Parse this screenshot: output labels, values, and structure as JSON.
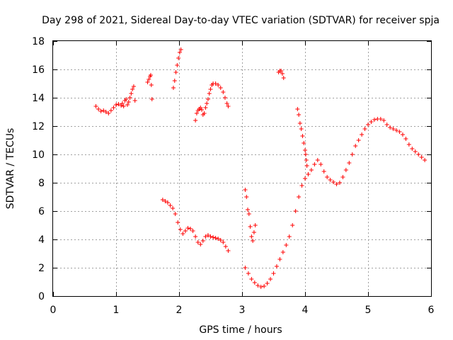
{
  "chart_data": {
    "type": "scatter",
    "title": "Day 298 of 2021, Sidereal Day-to-day VTEC variation (SDTVAR) for receiver spja",
    "xlabel": "GPS time / hours",
    "ylabel": "SDTVAR / TECUs",
    "xlim": [
      0,
      6
    ],
    "ylim": [
      0,
      18
    ],
    "xticks": [
      0,
      1,
      2,
      3,
      4,
      5,
      6
    ],
    "xtick_labels": [
      "0",
      "1",
      "2",
      "3",
      "4",
      "5",
      "6"
    ],
    "yticks": [
      0,
      2,
      4,
      6,
      8,
      10,
      12,
      14,
      16,
      18
    ],
    "ytick_labels": [
      "0",
      "2",
      "4",
      "6",
      "8",
      "10",
      "12",
      "14",
      "16",
      "18"
    ],
    "grid": true,
    "marker": "+",
    "color": "#ff0000",
    "series": [
      {
        "name": "SDTVAR",
        "segments": [
          [
            [
              0.68,
              13.4
            ],
            [
              0.72,
              13.2
            ],
            [
              0.76,
              13.05
            ],
            [
              0.8,
              13.1
            ],
            [
              0.84,
              13.0
            ],
            [
              0.88,
              12.9
            ],
            [
              0.92,
              13.1
            ],
            [
              0.96,
              13.3
            ],
            [
              1.0,
              13.5
            ],
            [
              1.04,
              13.55
            ],
            [
              1.08,
              13.45
            ],
            [
              1.1,
              13.6
            ],
            [
              1.12,
              13.4
            ],
            [
              1.14,
              13.8
            ],
            [
              1.16,
              13.9
            ],
            [
              1.18,
              13.5
            ],
            [
              1.2,
              13.7
            ],
            [
              1.22,
              14.0
            ],
            [
              1.24,
              14.3
            ],
            [
              1.26,
              14.6
            ],
            [
              1.28,
              14.8
            ],
            [
              1.3,
              13.8
            ]
          ],
          [
            [
              1.5,
              15.1
            ],
            [
              1.52,
              15.3
            ],
            [
              1.54,
              15.5
            ],
            [
              1.55,
              15.6
            ],
            [
              1.56,
              14.9
            ],
            [
              1.57,
              13.9
            ]
          ],
          [
            [
              1.91,
              14.7
            ],
            [
              1.93,
              15.2
            ],
            [
              1.95,
              15.8
            ],
            [
              1.97,
              16.3
            ],
            [
              1.99,
              16.8
            ],
            [
              2.01,
              17.2
            ],
            [
              2.03,
              17.4
            ]
          ],
          [
            [
              1.74,
              6.8
            ],
            [
              1.78,
              6.7
            ],
            [
              1.82,
              6.6
            ],
            [
              1.86,
              6.4
            ],
            [
              1.9,
              6.2
            ],
            [
              1.94,
              5.8
            ],
            [
              1.98,
              5.2
            ],
            [
              2.02,
              4.7
            ],
            [
              2.06,
              4.4
            ],
            [
              2.1,
              4.6
            ],
            [
              2.14,
              4.8
            ],
            [
              2.18,
              4.75
            ],
            [
              2.22,
              4.6
            ],
            [
              2.26,
              4.2
            ],
            [
              2.3,
              3.8
            ],
            [
              2.34,
              3.65
            ],
            [
              2.38,
              3.9
            ],
            [
              2.42,
              4.2
            ],
            [
              2.46,
              4.3
            ],
            [
              2.5,
              4.2
            ],
            [
              2.54,
              4.15
            ],
            [
              2.58,
              4.1
            ],
            [
              2.62,
              4.05
            ],
            [
              2.66,
              3.95
            ],
            [
              2.7,
              3.8
            ],
            [
              2.74,
              3.5
            ],
            [
              2.78,
              3.2
            ]
          ],
          [
            [
              2.26,
              12.4
            ],
            [
              2.28,
              12.9
            ],
            [
              2.3,
              13.1
            ],
            [
              2.32,
              13.2
            ],
            [
              2.34,
              13.3
            ],
            [
              2.36,
              13.15
            ],
            [
              2.38,
              12.8
            ],
            [
              2.4,
              12.9
            ],
            [
              2.42,
              13.3
            ],
            [
              2.44,
              13.6
            ],
            [
              2.46,
              13.9
            ],
            [
              2.48,
              14.3
            ],
            [
              2.5,
              14.6
            ],
            [
              2.52,
              14.9
            ],
            [
              2.54,
              15.0
            ],
            [
              2.58,
              15.0
            ],
            [
              2.62,
              14.9
            ],
            [
              2.66,
              14.7
            ],
            [
              2.7,
              14.4
            ],
            [
              2.73,
              14.0
            ],
            [
              2.76,
              13.6
            ],
            [
              2.78,
              13.4
            ]
          ],
          [
            [
              3.05,
              7.5
            ],
            [
              3.07,
              7.0
            ],
            [
              3.09,
              6.1
            ],
            [
              3.11,
              5.8
            ],
            [
              3.13,
              4.9
            ],
            [
              3.15,
              4.2
            ],
            [
              3.17,
              3.9
            ],
            [
              3.19,
              4.5
            ],
            [
              3.21,
              5.0
            ]
          ],
          [
            [
              3.05,
              2.0
            ],
            [
              3.1,
              1.6
            ],
            [
              3.15,
              1.2
            ],
            [
              3.2,
              0.95
            ],
            [
              3.25,
              0.75
            ],
            [
              3.3,
              0.65
            ],
            [
              3.35,
              0.7
            ],
            [
              3.4,
              0.9
            ],
            [
              3.45,
              1.2
            ],
            [
              3.5,
              1.6
            ],
            [
              3.55,
              2.1
            ],
            [
              3.6,
              2.6
            ],
            [
              3.65,
              3.1
            ],
            [
              3.7,
              3.6
            ],
            [
              3.75,
              4.2
            ],
            [
              3.8,
              5.0
            ],
            [
              3.85,
              6.0
            ],
            [
              3.9,
              7.0
            ],
            [
              3.95,
              7.8
            ],
            [
              4.0,
              8.3
            ],
            [
              4.05,
              8.6
            ],
            [
              4.1,
              8.9
            ],
            [
              4.15,
              9.3
            ],
            [
              4.2,
              9.6
            ],
            [
              4.25,
              9.3
            ],
            [
              4.3,
              8.8
            ],
            [
              4.35,
              8.4
            ],
            [
              4.4,
              8.2
            ],
            [
              4.45,
              8.05
            ],
            [
              4.5,
              7.9
            ],
            [
              4.55,
              8.0
            ],
            [
              4.6,
              8.4
            ],
            [
              4.65,
              8.9
            ],
            [
              4.7,
              9.4
            ],
            [
              4.75,
              10.0
            ],
            [
              4.8,
              10.6
            ],
            [
              4.85,
              11.0
            ],
            [
              4.9,
              11.4
            ],
            [
              4.95,
              11.8
            ],
            [
              5.0,
              12.1
            ],
            [
              5.05,
              12.3
            ],
            [
              5.1,
              12.45
            ],
            [
              5.15,
              12.5
            ],
            [
              5.2,
              12.5
            ],
            [
              5.25,
              12.4
            ],
            [
              5.3,
              12.1
            ],
            [
              5.35,
              11.9
            ],
            [
              5.4,
              11.8
            ],
            [
              5.45,
              11.7
            ],
            [
              5.5,
              11.6
            ],
            [
              5.55,
              11.4
            ],
            [
              5.6,
              11.1
            ],
            [
              5.65,
              10.7
            ],
            [
              5.7,
              10.4
            ],
            [
              5.75,
              10.2
            ],
            [
              5.8,
              10.0
            ],
            [
              5.85,
              9.8
            ],
            [
              5.9,
              9.6
            ]
          ],
          [
            [
              3.58,
              15.8
            ],
            [
              3.6,
              15.9
            ],
            [
              3.62,
              15.9
            ],
            [
              3.64,
              15.7
            ],
            [
              3.66,
              15.4
            ]
          ],
          [
            [
              3.88,
              13.2
            ],
            [
              3.9,
              12.8
            ],
            [
              3.92,
              12.2
            ],
            [
              3.94,
              11.8
            ],
            [
              3.96,
              11.3
            ],
            [
              3.98,
              10.8
            ],
            [
              4.0,
              10.3
            ],
            [
              4.01,
              10.0
            ],
            [
              4.02,
              9.6
            ],
            [
              4.03,
              9.2
            ],
            [
              4.05,
              8.6
            ]
          ]
        ]
      }
    ]
  }
}
